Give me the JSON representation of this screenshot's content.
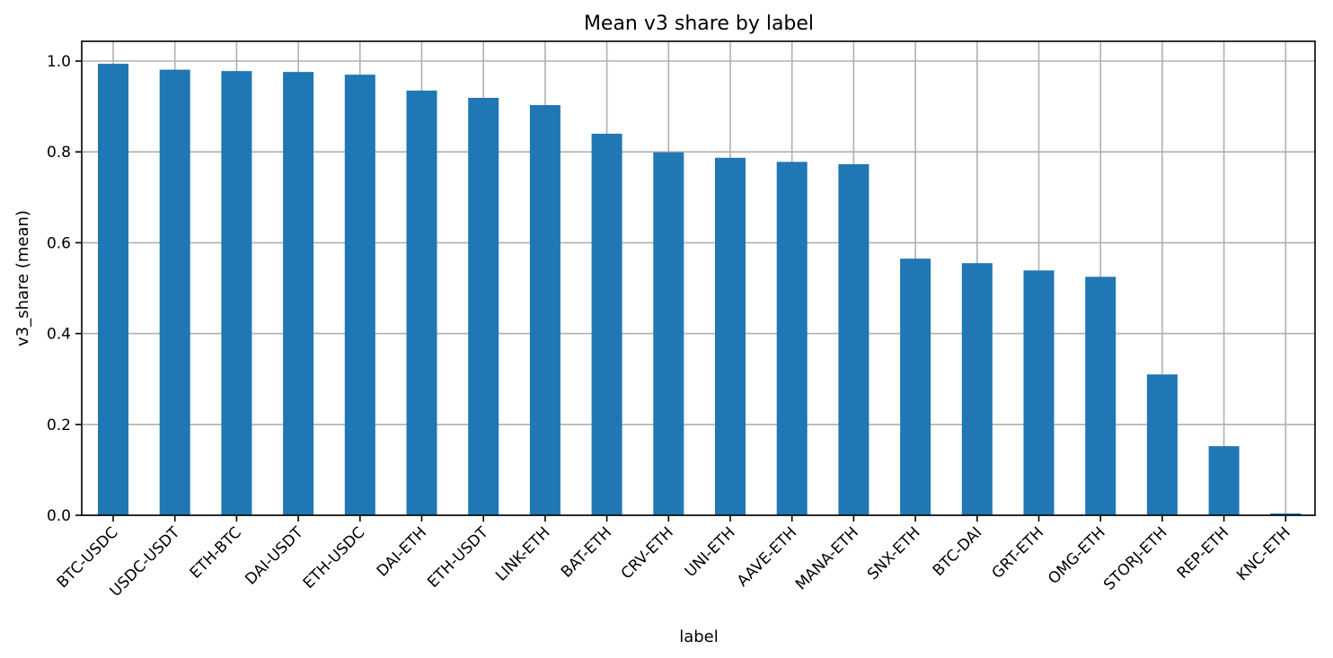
{
  "chart_data": {
    "type": "bar",
    "title": "Mean v3 share by label",
    "xlabel": "label",
    "ylabel": "v3_share (mean)",
    "ylim": [
      0,
      1.04
    ],
    "yticks": [
      0.0,
      0.2,
      0.4,
      0.6,
      0.8,
      1.0
    ],
    "ytick_labels": [
      "0.0",
      "0.2",
      "0.4",
      "0.6",
      "0.8",
      "1.0"
    ],
    "grid": true,
    "bar_color": "#1f77b4",
    "categories": [
      "BTC-USDC",
      "USDC-USDT",
      "ETH-BTC",
      "DAI-USDT",
      "ETH-USDC",
      "DAI-ETH",
      "ETH-USDT",
      "LINK-ETH",
      "BAT-ETH",
      "CRV-ETH",
      "UNI-ETH",
      "AAVE-ETH",
      "MANA-ETH",
      "SNX-ETH",
      "BTC-DAI",
      "GRT-ETH",
      "OMG-ETH",
      "STORJ-ETH",
      "REP-ETH",
      "KNC-ETH"
    ],
    "values": [
      0.994,
      0.981,
      0.978,
      0.976,
      0.97,
      0.935,
      0.919,
      0.903,
      0.84,
      0.799,
      0.787,
      0.778,
      0.773,
      0.565,
      0.555,
      0.539,
      0.525,
      0.31,
      0.152,
      0.004
    ]
  }
}
